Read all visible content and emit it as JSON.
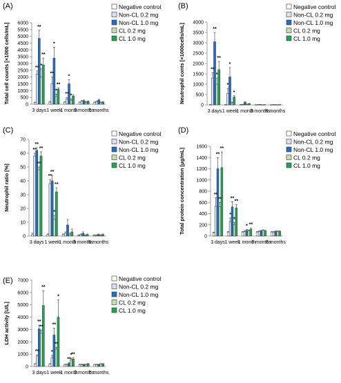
{
  "legend": [
    "Negative control",
    "Non-CL 0.2 mg",
    "Non-CL 1.0 mg",
    "CL 0.2 mg",
    "CL 1.0 mg"
  ],
  "colors": {
    "series": [
      "#ffffff",
      "#d6e2f2",
      "#1f6fc6",
      "#c4dfb0",
      "#1aa852"
    ],
    "stroke": "#333333",
    "axis": "#888888"
  },
  "chart_data": [
    {
      "type": "bar",
      "panel_label": "(A)",
      "ylabel": "Total cell counts [×1000 cells/mL]",
      "categories": [
        "3 days",
        "1 week",
        "1 month",
        "3 months",
        "6 months"
      ],
      "ylim": [
        0,
        6000
      ],
      "yticks": [
        0,
        500,
        1000,
        1500,
        2000,
        2500,
        3000,
        3500,
        4000,
        4500,
        5000,
        5500,
        6000
      ],
      "legend_position": "top-right",
      "series": [
        {
          "name": "Negative control",
          "values": [
            120,
            150,
            150,
            130,
            130
          ],
          "errors": [
            30,
            30,
            30,
            30,
            30
          ]
        },
        {
          "name": "Non-CL 0.2 mg",
          "values": [
            2200,
            1500,
            400,
            220,
            200
          ],
          "errors": [
            250,
            500,
            100,
            50,
            40
          ]
        },
        {
          "name": "Non-CL 1.0 mg",
          "values": [
            4850,
            3400,
            1500,
            250,
            300
          ],
          "errors": [
            600,
            800,
            300,
            60,
            60
          ]
        },
        {
          "name": "CL 0.2 mg",
          "values": [
            2000,
            600,
            300,
            150,
            130
          ],
          "errors": [
            600,
            150,
            80,
            40,
            30
          ]
        },
        {
          "name": "CL 1.0 mg",
          "values": [
            2900,
            1100,
            600,
            200,
            150
          ],
          "errors": [
            500,
            100,
            100,
            40,
            30
          ]
        }
      ],
      "annotations": [
        {
          "x": "3 days",
          "series": "Non-CL 0.2 mg",
          "text": "**"
        },
        {
          "x": "3 days",
          "series": "Non-CL 1.0 mg",
          "text": "**"
        },
        {
          "x": "3 days",
          "series": "CL 0.2 mg",
          "text": "*"
        },
        {
          "x": "3 days",
          "series": "CL 1.0 mg",
          "text": "**"
        },
        {
          "x": "1 week",
          "series": "Non-CL 0.2 mg",
          "text": "**"
        },
        {
          "x": "1 week",
          "series": "Non-CL 1.0 mg",
          "text": "*"
        },
        {
          "x": "1 week",
          "series": "CL 0.2 mg",
          "text": "*"
        },
        {
          "x": "1 week",
          "series": "CL 1.0 mg",
          "text": "**"
        },
        {
          "x": "1 month",
          "series": "Non-CL 0.2 mg",
          "text": "**"
        },
        {
          "x": "1 month",
          "series": "Non-CL 1.0 mg",
          "text": "*"
        },
        {
          "x": "1 month",
          "series": "CL 0.2 mg",
          "text": "*"
        }
      ]
    },
    {
      "type": "bar",
      "panel_label": "(B)",
      "ylabel": "Neutrophil conts [×1000cells/mL]",
      "categories": [
        "3 days",
        "1 week",
        "1 month",
        "3 months",
        "6 months"
      ],
      "ylim": [
        0,
        4000
      ],
      "yticks": [
        0,
        500,
        1000,
        1500,
        2000,
        2500,
        3000,
        3500,
        4000
      ],
      "legend_position": "top-right",
      "series": [
        {
          "name": "Negative control",
          "values": [
            10,
            10,
            10,
            5,
            5
          ],
          "errors": [
            5,
            5,
            5,
            3,
            3
          ]
        },
        {
          "name": "Non-CL 0.2 mg",
          "values": [
            1300,
            550,
            20,
            10,
            10
          ],
          "errors": [
            250,
            250,
            10,
            5,
            5
          ]
        },
        {
          "name": "Non-CL 1.0 mg",
          "values": [
            3050,
            1350,
            120,
            15,
            10
          ],
          "errors": [
            450,
            450,
            40,
            5,
            5
          ]
        },
        {
          "name": "CL 0.2 mg",
          "values": [
            1000,
            100,
            30,
            5,
            5
          ],
          "errors": [
            300,
            30,
            10,
            3,
            3
          ]
        },
        {
          "name": "CL 1.0 mg",
          "values": [
            1700,
            380,
            50,
            10,
            10
          ],
          "errors": [
            400,
            60,
            20,
            5,
            5
          ]
        }
      ],
      "annotations": [
        {
          "x": "3 days",
          "series": "Non-CL 0.2 mg",
          "text": "**"
        },
        {
          "x": "3 days",
          "series": "Non-CL 1.0 mg",
          "text": "**"
        },
        {
          "x": "3 days",
          "series": "CL 0.2 mg",
          "text": "*"
        },
        {
          "x": "3 days",
          "series": "CL 1.0 mg",
          "text": "**"
        },
        {
          "x": "1 week",
          "series": "Non-CL 0.2 mg",
          "text": "*"
        },
        {
          "x": "1 week",
          "series": "Non-CL 1.0 mg",
          "text": "*"
        },
        {
          "x": "1 week",
          "series": "CL 1.0 mg",
          "text": "*"
        }
      ]
    },
    {
      "type": "bar",
      "panel_label": "(C)",
      "ylabel": "Neutrophil ratio [%]",
      "categories": [
        "3 days",
        "1 week",
        "1 month",
        "3 months",
        "6 months"
      ],
      "ylim": [
        0,
        70
      ],
      "yticks": [
        0,
        10,
        20,
        30,
        40,
        50,
        60,
        70
      ],
      "legend_position": "top-right",
      "series": [
        {
          "name": "Negative control",
          "values": [
            1,
            1,
            1,
            0.5,
            0.5
          ],
          "errors": [
            1,
            0.5,
            0.5,
            0.3,
            0.3
          ]
        },
        {
          "name": "Non-CL 0.2 mg",
          "values": [
            58,
            38,
            2,
            1,
            0.5
          ],
          "errors": [
            2,
            3,
            1,
            0.5,
            0.3
          ]
        },
        {
          "name": "Non-CL 1.0 mg",
          "values": [
            62,
            40,
            8,
            2,
            1
          ],
          "errors": [
            2,
            4,
            4,
            1,
            0.5
          ]
        },
        {
          "name": "CL 0.2 mg",
          "values": [
            48,
            12,
            1,
            0.5,
            0.5
          ],
          "errors": [
            2,
            3,
            1,
            0.3,
            0.3
          ]
        },
        {
          "name": "CL 1.0 mg",
          "values": [
            58,
            32,
            3,
            1,
            1
          ],
          "errors": [
            3,
            3,
            2,
            0.5,
            0.5
          ]
        }
      ],
      "annotations": [
        {
          "x": "3 days",
          "series": "Non-CL 0.2 mg",
          "text": "**"
        },
        {
          "x": "3 days",
          "series": "Non-CL 1.0 mg",
          "text": "**"
        },
        {
          "x": "3 days",
          "series": "CL 0.2 mg",
          "text": "**"
        },
        {
          "x": "3 days",
          "series": "CL 1.0 mg",
          "text": "**"
        },
        {
          "x": "1 week",
          "series": "Non-CL 0.2 mg",
          "text": "**"
        },
        {
          "x": "1 week",
          "series": "Non-CL 1.0 mg",
          "text": "**"
        },
        {
          "x": "1 week",
          "series": "CL 0.2 mg",
          "text": "*"
        },
        {
          "x": "1 week",
          "series": "CL 1.0 mg",
          "text": "**"
        }
      ]
    },
    {
      "type": "bar",
      "panel_label": "(D)",
      "ylabel": "Total protein concentration [μg/mL]",
      "categories": [
        "3 days",
        "1 week",
        "1 month",
        "3 months",
        "6 months"
      ],
      "ylim": [
        0,
        1600
      ],
      "yticks": [
        0,
        200,
        400,
        600,
        800,
        1000,
        1200,
        1400,
        1600
      ],
      "legend_position": "top-right",
      "series": [
        {
          "name": "Negative control",
          "values": [
            60,
            70,
            70,
            70,
            70
          ],
          "errors": [
            10,
            10,
            10,
            10,
            10
          ]
        },
        {
          "name": "Non-CL 0.2 mg",
          "values": [
            530,
            260,
            80,
            80,
            70
          ],
          "errors": [
            150,
            60,
            15,
            10,
            10
          ]
        },
        {
          "name": "Non-CL 1.0 mg",
          "values": [
            1200,
            520,
            100,
            90,
            80
          ],
          "errors": [
            200,
            90,
            15,
            10,
            10
          ]
        },
        {
          "name": "CL 0.2 mg",
          "values": [
            520,
            200,
            90,
            100,
            80
          ],
          "errors": [
            80,
            40,
            15,
            10,
            10
          ]
        },
        {
          "name": "CL 1.0 mg",
          "values": [
            1220,
            500,
            120,
            90,
            80
          ],
          "errors": [
            280,
            60,
            20,
            10,
            10
          ]
        }
      ],
      "annotations": [
        {
          "x": "3 days",
          "series": "Non-CL 0.2 mg",
          "text": "**"
        },
        {
          "x": "3 days",
          "series": "Non-CL 1.0 mg",
          "text": "**"
        },
        {
          "x": "3 days",
          "series": "CL 0.2 mg",
          "text": "**"
        },
        {
          "x": "3 days",
          "series": "CL 1.0 mg",
          "text": "**"
        },
        {
          "x": "1 week",
          "series": "Non-CL 0.2 mg",
          "text": "*"
        },
        {
          "x": "1 week",
          "series": "Non-CL 1.0 mg",
          "text": "**"
        },
        {
          "x": "1 week",
          "series": "CL 0.2 mg",
          "text": "*"
        },
        {
          "x": "1 week",
          "series": "CL 1.0 mg",
          "text": "**"
        },
        {
          "x": "1 month",
          "series": "Non-CL 1.0 mg",
          "text": "*"
        },
        {
          "x": "1 month",
          "series": "CL 1.0 mg",
          "text": "**"
        }
      ]
    },
    {
      "type": "bar",
      "panel_label": "(E)",
      "ylabel": "LDH activity    [U/L]",
      "categories": [
        "3 days",
        "1 week",
        "1 month",
        "3 months",
        "6 months"
      ],
      "ylim": [
        0,
        7000
      ],
      "yticks": [
        0,
        1000,
        2000,
        3000,
        4000,
        5000,
        6000,
        7000
      ],
      "legend_position": "top-right",
      "series": [
        {
          "name": "Negative control",
          "values": [
            200,
            200,
            150,
            150,
            150
          ],
          "errors": [
            30,
            30,
            30,
            30,
            30
          ]
        },
        {
          "name": "Non-CL 0.2 mg",
          "values": [
            850,
            700,
            150,
            150,
            150
          ],
          "errors": [
            100,
            200,
            30,
            30,
            30
          ]
        },
        {
          "name": "Non-CL 1.0 mg",
          "values": [
            3050,
            2550,
            250,
            150,
            150
          ],
          "errors": [
            300,
            550,
            50,
            30,
            30
          ]
        },
        {
          "name": "CL 0.2 mg",
          "values": [
            2700,
            1400,
            550,
            150,
            200
          ],
          "errors": [
            250,
            150,
            100,
            30,
            30
          ]
        },
        {
          "name": "CL 1.0 mg",
          "values": [
            4950,
            4000,
            600,
            200,
            200
          ],
          "errors": [
            1200,
            1400,
            100,
            40,
            30
          ]
        }
      ],
      "annotations": [
        {
          "x": "3 days",
          "series": "Non-CL 0.2 mg",
          "text": "**"
        },
        {
          "x": "3 days",
          "series": "Non-CL 1.0 mg",
          "text": "**"
        },
        {
          "x": "3 days",
          "series": "CL 0.2 mg",
          "text": "**"
        },
        {
          "x": "3 days",
          "series": "CL 1.0 mg",
          "text": "**"
        },
        {
          "x": "1 week",
          "series": "Non-CL 0.2 mg",
          "text": "*"
        },
        {
          "x": "1 week",
          "series": "Non-CL 1.0 mg",
          "text": "**"
        },
        {
          "x": "1 week",
          "series": "CL 0.2 mg",
          "text": "**"
        },
        {
          "x": "1 week",
          "series": "CL 1.0 mg",
          "text": "*"
        },
        {
          "x": "1 month",
          "series": "Non-CL 1.0 mg",
          "text": "**"
        },
        {
          "x": "1 month",
          "series": "CL 0.2 mg",
          "text": "*"
        },
        {
          "x": "1 month",
          "series": "CL 1.0 mg",
          "text": "**"
        }
      ]
    }
  ]
}
